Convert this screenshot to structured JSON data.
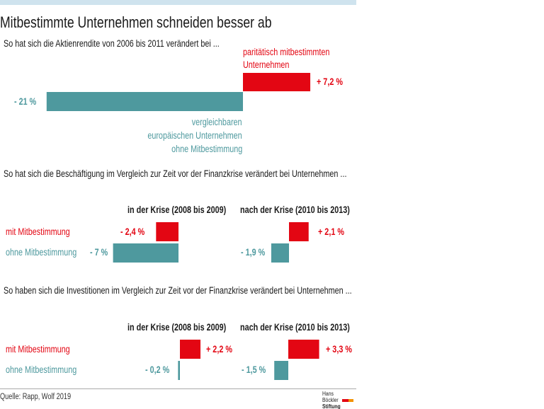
{
  "header": {
    "title": "Mitbestimmte Unternehmen schneiden besser ab"
  },
  "colors": {
    "with_codetermination": "#e30613",
    "without_codetermination": "#4e999e",
    "top_bar": "#cfe3ee"
  },
  "chart_data": [
    {
      "type": "bar",
      "orientation": "horizontal",
      "title": "So hat sich die Aktienrendite von 2006 bis 2011 verändert bei ...",
      "categories": [
        "paritätisch mitbestimmten Unternehmen",
        "vergleichbaren europäischen Unternehmen ohne Mitbestimmung"
      ],
      "category_lines": [
        [
          "paritätisch mitbestimmten",
          "Unternehmen"
        ],
        [
          "vergleichbaren",
          "europäischen Unternehmen",
          "ohne Mitbestimmung"
        ]
      ],
      "values": [
        7.2,
        -21
      ],
      "value_labels": [
        "+ 7,2 %",
        "- 21 %"
      ],
      "colors": [
        "#e30613",
        "#4e999e"
      ],
      "unit": "%"
    },
    {
      "type": "bar",
      "orientation": "horizontal",
      "title": "So hat sich die Beschäftigung im Vergleich zur Zeit vor der Finanzkrise verändert bei Unternehmen ...",
      "categories": [
        "mit Mitbestimmung",
        "ohne Mitbestimmung"
      ],
      "series": [
        {
          "name": "in der Krise (2008 bis 2009)",
          "values": [
            -2.4,
            -7
          ],
          "value_labels": [
            "- 2,4 %",
            "- 7 %"
          ]
        },
        {
          "name": "nach der Krise (2010 bis 2013)",
          "values": [
            2.1,
            -1.9
          ],
          "value_labels": [
            "+ 2,1 %",
            "- 1,9 %"
          ]
        }
      ],
      "colors": [
        "#e30613",
        "#4e999e"
      ],
      "unit": "%"
    },
    {
      "type": "bar",
      "orientation": "horizontal",
      "title": "So haben sich die Investitionen im Vergleich zur Zeit vor der Finanzkrise verändert bei Unternehmen ...",
      "categories": [
        "mit Mitbestimmung",
        "ohne Mitbestimmung"
      ],
      "series": [
        {
          "name": "in der Krise (2008 bis 2009)",
          "values": [
            2.2,
            -0.2
          ],
          "value_labels": [
            "+ 2,2 %",
            "- 0,2 %"
          ]
        },
        {
          "name": "nach der Krise (2010 bis 2013)",
          "values": [
            3.3,
            -1.5
          ],
          "value_labels": [
            "+ 3,3 %",
            "- 1,5 %"
          ]
        }
      ],
      "colors": [
        "#e30613",
        "#4e999e"
      ],
      "unit": "%"
    }
  ],
  "footer": {
    "source": "Quelle: Rapp, Wolf 2019",
    "logo_text": [
      "Hans Böckler",
      "Stiftung"
    ]
  }
}
